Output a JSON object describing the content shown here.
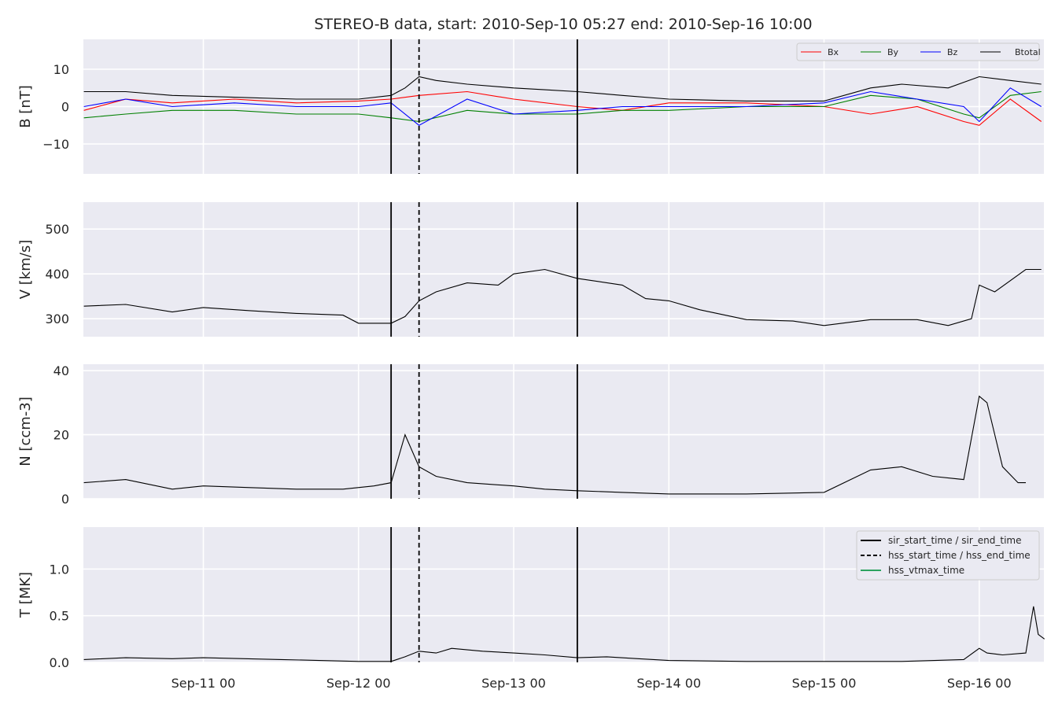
{
  "chart_data": {
    "type": "line",
    "title": "STEREO-B data, start: 2010-Sep-10 05:27  end: 2010-Sep-16 10:00",
    "x_start": "2010-Sep-10 05:27",
    "x_end": "2010-Sep-16 10:00",
    "x_tick_labels": [
      "Sep-11 00",
      "Sep-12 00",
      "Sep-13 00",
      "Sep-14 00",
      "Sep-15 00",
      "Sep-16 00"
    ],
    "x_ticks_days": [
      1,
      2,
      3,
      4,
      5,
      6
    ],
    "markers": [
      {
        "kind": "sir_start_time",
        "day": 2.21,
        "style": "solid"
      },
      {
        "kind": "hss_start_time",
        "day": 2.39,
        "style": "dashed"
      },
      {
        "kind": "sir_end_time",
        "day": 3.41,
        "style": "solid"
      }
    ],
    "panels": [
      {
        "id": "B",
        "ylabel": "B [nT]",
        "ylim": [
          -18,
          18
        ],
        "yticks": [
          -10,
          0,
          10
        ],
        "ytick_labels": [
          "−10",
          "0",
          "10"
        ],
        "legend": [
          "Bx",
          "By",
          "Bz",
          "Btotal"
        ],
        "series": [
          {
            "name": "Btotal",
            "color": "#000000",
            "x": [
              0.23,
              0.5,
              0.8,
              1.2,
              1.6,
              2.0,
              2.21,
              2.3,
              2.39,
              2.5,
              2.7,
              3.0,
              3.2,
              3.41,
              3.7,
              4.0,
              4.5,
              5.0,
              5.3,
              5.5,
              5.8,
              6.0,
              6.2,
              6.4
            ],
            "y": [
              4,
              4,
              3,
              2.5,
              2,
              2,
              3,
              5,
              8,
              7,
              6,
              5,
              4.5,
              4,
              3,
              2,
              1.5,
              1.5,
              5,
              6,
              5,
              8,
              7,
              6
            ]
          },
          {
            "name": "Bx",
            "color": "#ff0000",
            "x": [
              0.23,
              0.5,
              0.8,
              1.2,
              1.6,
              2.0,
              2.21,
              2.39,
              2.7,
              3.0,
              3.41,
              3.7,
              4.0,
              4.5,
              5.0,
              5.3,
              5.6,
              5.9,
              6.0,
              6.2,
              6.4
            ],
            "y": [
              -1,
              2,
              1,
              2,
              1,
              1.5,
              2,
              3,
              4,
              2,
              0,
              -1,
              1,
              1,
              0,
              -2,
              0,
              -4,
              -5,
              2,
              -4
            ]
          },
          {
            "name": "By",
            "color": "#008000",
            "x": [
              0.23,
              0.5,
              0.8,
              1.2,
              1.6,
              2.0,
              2.21,
              2.39,
              2.7,
              3.0,
              3.41,
              3.7,
              4.0,
              4.5,
              5.0,
              5.3,
              5.6,
              5.9,
              6.0,
              6.2,
              6.4
            ],
            "y": [
              -3,
              -2,
              -1,
              -1,
              -2,
              -2,
              -3,
              -4,
              -1,
              -2,
              -2,
              -1,
              -1,
              0,
              0,
              3,
              2,
              -2,
              -3,
              3,
              4
            ]
          },
          {
            "name": "Bz",
            "color": "#0000ff",
            "x": [
              0.23,
              0.5,
              0.8,
              1.2,
              1.6,
              2.0,
              2.21,
              2.39,
              2.7,
              3.0,
              3.41,
              3.7,
              4.0,
              4.5,
              5.0,
              5.3,
              5.6,
              5.9,
              6.0,
              6.2,
              6.4
            ],
            "y": [
              0,
              2,
              0,
              1,
              0,
              0,
              1,
              -5,
              2,
              -2,
              -1,
              0,
              0,
              0,
              1,
              4,
              2,
              0,
              -4,
              5,
              0
            ]
          }
        ]
      },
      {
        "id": "V",
        "ylabel": "V [km/s]",
        "ylim": [
          260,
          560
        ],
        "yticks": [
          300,
          400,
          500
        ],
        "ytick_labels": [
          "300",
          "400",
          "500"
        ],
        "series": [
          {
            "name": "V",
            "color": "#000000",
            "x": [
              0.23,
              0.5,
              0.8,
              1.0,
              1.3,
              1.6,
              1.9,
              2.0,
              2.21,
              2.3,
              2.39,
              2.5,
              2.7,
              2.9,
              3.0,
              3.2,
              3.41,
              3.7,
              3.85,
              4.0,
              4.2,
              4.5,
              4.8,
              5.0,
              5.3,
              5.6,
              5.8,
              5.95,
              6.0,
              6.1,
              6.3,
              6.4
            ],
            "y": [
              328,
              332,
              315,
              325,
              318,
              312,
              308,
              290,
              290,
              305,
              340,
              360,
              380,
              375,
              400,
              410,
              390,
              375,
              345,
              340,
              320,
              298,
              295,
              285,
              298,
              298,
              285,
              300,
              375,
              360,
              410,
              410
            ]
          }
        ]
      },
      {
        "id": "N",
        "ylabel": "N [ccm-3]",
        "ylim": [
          0,
          42
        ],
        "yticks": [
          0,
          20,
          40
        ],
        "ytick_labels": [
          "0",
          "20",
          "40"
        ],
        "series": [
          {
            "name": "N",
            "color": "#000000",
            "x": [
              0.23,
              0.5,
              0.8,
              1.0,
              1.3,
              1.6,
              1.9,
              2.1,
              2.21,
              2.3,
              2.39,
              2.5,
              2.7,
              3.0,
              3.2,
              3.41,
              3.7,
              4.0,
              4.5,
              5.0,
              5.3,
              5.5,
              5.7,
              5.9,
              6.0,
              6.05,
              6.15,
              6.25,
              6.3
            ],
            "y": [
              5,
              6,
              3,
              4,
              3.5,
              3,
              3,
              4,
              5,
              20,
              10,
              7,
              5,
              4,
              3,
              2.5,
              2,
              1.5,
              1.5,
              2,
              9,
              10,
              7,
              6,
              32,
              30,
              10,
              5,
              5
            ]
          }
        ]
      },
      {
        "id": "T",
        "ylabel": "T [MK]",
        "ylim": [
          0,
          1.45
        ],
        "yticks": [
          0.0,
          0.5,
          1.0
        ],
        "ytick_labels": [
          "0.0",
          "0.5",
          "1.0"
        ],
        "legend": [
          "sir_start_time / sir_end_time",
          "hss_start_time / hss_end_time",
          "hss_vtmax_time"
        ],
        "series": [
          {
            "name": "T",
            "color": "#000000",
            "x": [
              0.23,
              0.5,
              0.8,
              1.0,
              1.5,
              2.0,
              2.21,
              2.3,
              2.39,
              2.5,
              2.6,
              2.8,
              3.0,
              3.2,
              3.41,
              3.6,
              3.8,
              4.0,
              4.5,
              5.0,
              5.5,
              5.9,
              6.0,
              6.05,
              6.15,
              6.3,
              6.35,
              6.38,
              6.42
            ],
            "y": [
              0.03,
              0.05,
              0.04,
              0.05,
              0.03,
              0.01,
              0.01,
              0.06,
              0.12,
              0.1,
              0.15,
              0.12,
              0.1,
              0.08,
              0.05,
              0.06,
              0.04,
              0.02,
              0.01,
              0.01,
              0.01,
              0.03,
              0.15,
              0.1,
              0.08,
              0.1,
              0.6,
              0.3,
              0.25
            ]
          }
        ]
      }
    ]
  }
}
